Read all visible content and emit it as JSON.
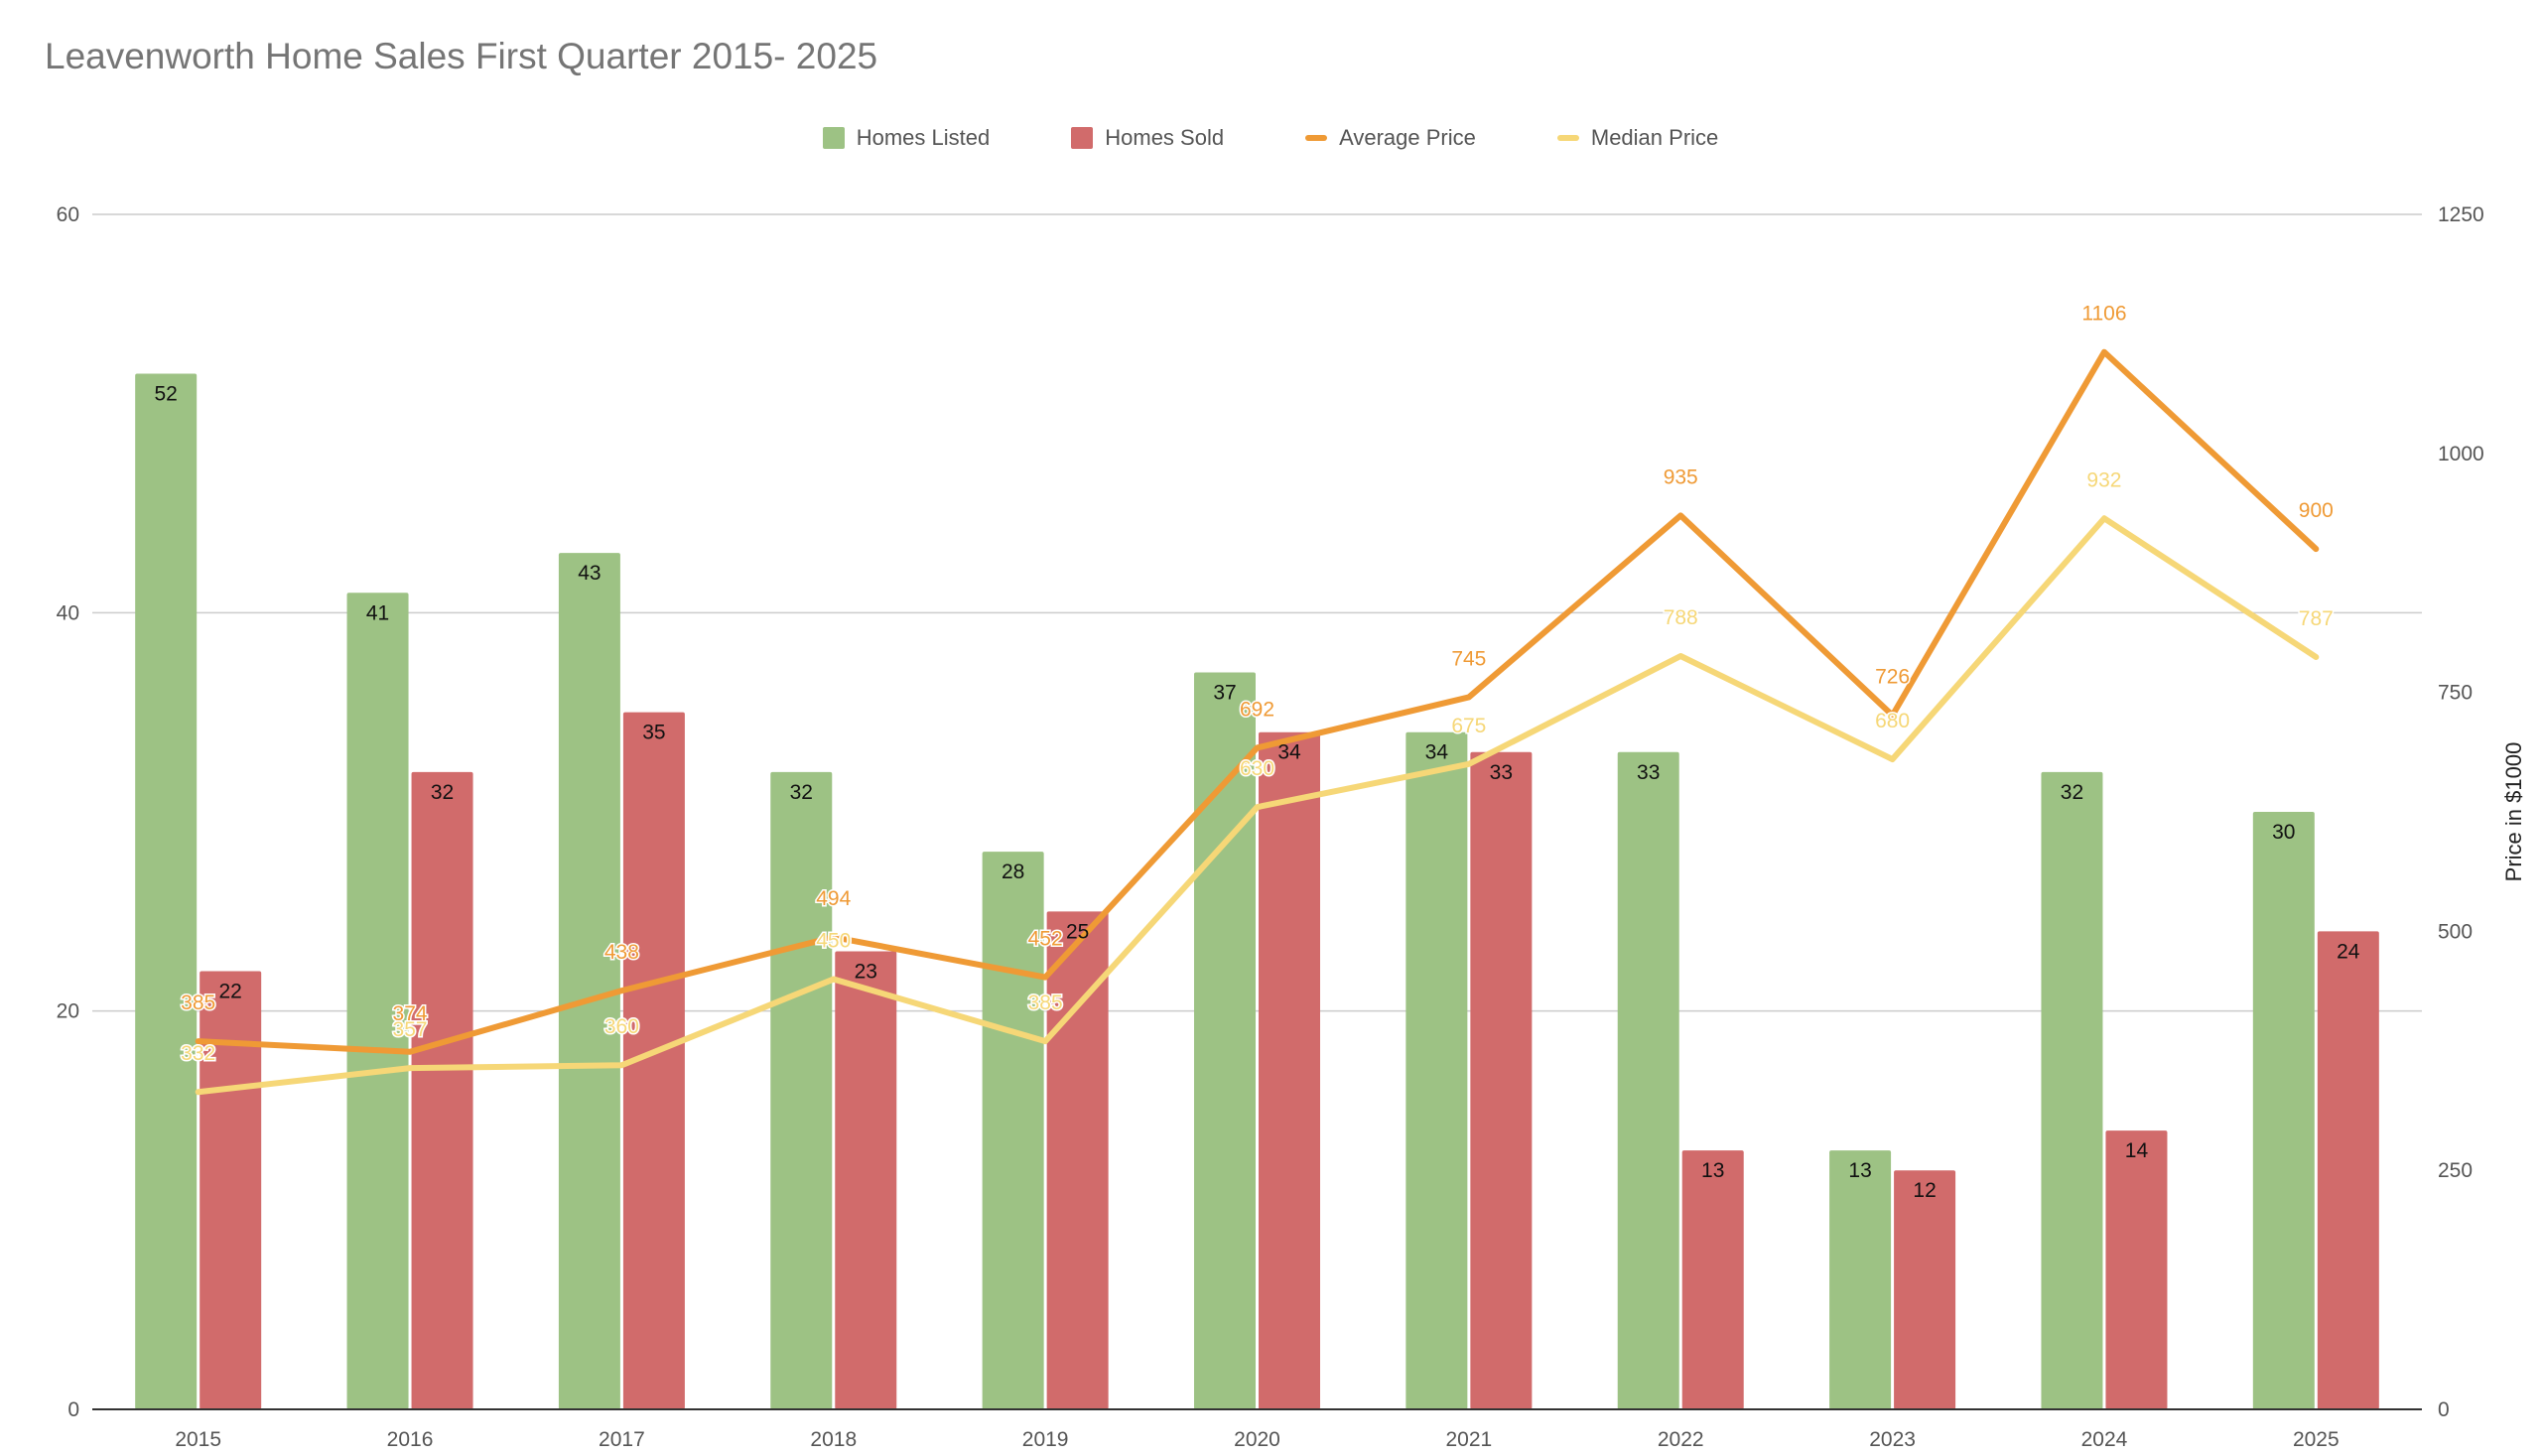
{
  "chart_data": {
    "type": "bar",
    "title": "Leavenworth Home Sales First Quarter 2015- 2025",
    "categories": [
      "2015",
      "2016",
      "2017",
      "2018",
      "2019",
      "2020",
      "2021",
      "2022",
      "2023",
      "2024",
      "2025"
    ],
    "series": [
      {
        "name": "Homes Listed",
        "type": "bar",
        "axis": "left",
        "color": "#9dc284",
        "values": [
          52,
          41,
          43,
          32,
          28,
          37,
          34,
          33,
          13,
          32,
          30
        ]
      },
      {
        "name": "Homes Sold",
        "type": "bar",
        "axis": "left",
        "color": "#d16b6b",
        "values": [
          22,
          32,
          35,
          23,
          25,
          34,
          33,
          13,
          12,
          14,
          24
        ]
      },
      {
        "name": "Average Price",
        "type": "line",
        "axis": "right",
        "color": "#ef9a35",
        "values": [
          385,
          374,
          438,
          494,
          452,
          692,
          745,
          935,
          726,
          1106,
          900
        ]
      },
      {
        "name": "Median Price",
        "type": "line",
        "axis": "right",
        "color": "#f6d777",
        "values": [
          332,
          357,
          360,
          450,
          385,
          630,
          675,
          788,
          680,
          932,
          787
        ]
      }
    ],
    "y_left": {
      "min": 0,
      "max": 60,
      "ticks": [
        0,
        20,
        40,
        60
      ]
    },
    "y_right": {
      "min": 0,
      "max": 1250,
      "ticks": [
        0,
        250,
        500,
        750,
        1000,
        1250
      ],
      "label": "Price in $1000"
    },
    "xlabel": "",
    "ylabel": "",
    "grid": true,
    "legend_position": "top-center"
  }
}
